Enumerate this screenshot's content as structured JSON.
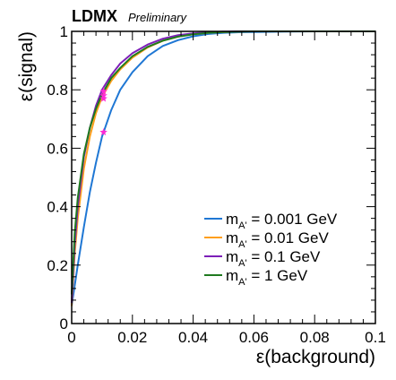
{
  "chart_data": {
    "type": "line",
    "experiment": "LDMX",
    "status": "Preliminary",
    "xlabel": "ε(background)",
    "ylabel": "ε(signal)",
    "xlim": [
      0,
      0.1
    ],
    "ylim": [
      0,
      1
    ],
    "x_ticks": [
      0,
      0.02,
      0.04,
      0.06,
      0.08,
      0.1
    ],
    "x_tick_labels": [
      "0",
      "0.02",
      "0.04",
      "0.06",
      "0.08",
      "0.1"
    ],
    "y_ticks": [
      0,
      0.2,
      0.4,
      0.6,
      0.8,
      1
    ],
    "y_tick_labels": [
      "0",
      "0.2",
      "0.4",
      "0.6",
      "0.8",
      "1"
    ],
    "legend_position": "bottom-right",
    "series": [
      {
        "name": "m_{A'} = 0.001 GeV",
        "legend_main": "m",
        "legend_sub": "A'",
        "legend_rest": " = 0.001 GeV",
        "color": "#1f77d4",
        "x": [
          0,
          0.001,
          0.002,
          0.004,
          0.006,
          0.008,
          0.01,
          0.013,
          0.016,
          0.02,
          0.025,
          0.03,
          0.035,
          0.04,
          0.045,
          0.05,
          0.055,
          0.06,
          0.07,
          0.08,
          0.09,
          0.1
        ],
        "y": [
          0.06,
          0.13,
          0.2,
          0.33,
          0.45,
          0.55,
          0.64,
          0.73,
          0.8,
          0.86,
          0.915,
          0.95,
          0.97,
          0.983,
          0.991,
          0.995,
          0.997,
          0.998,
          0.999,
          1.0,
          1.0,
          1.0
        ],
        "marker": {
          "x": 0.0105,
          "y": 0.655
        }
      },
      {
        "name": "m_{A'} = 0.01 GeV",
        "legend_main": "m",
        "legend_sub": "A'",
        "legend_rest": " = 0.01 GeV",
        "color": "#ff9f1c",
        "x": [
          0,
          0.001,
          0.002,
          0.004,
          0.006,
          0.008,
          0.01,
          0.013,
          0.016,
          0.02,
          0.025,
          0.03,
          0.035,
          0.04,
          0.045,
          0.05,
          0.055,
          0.06,
          0.07,
          0.08,
          0.09,
          0.1
        ],
        "y": [
          0.06,
          0.24,
          0.36,
          0.53,
          0.64,
          0.72,
          0.775,
          0.83,
          0.87,
          0.91,
          0.945,
          0.968,
          0.982,
          0.99,
          0.995,
          0.998,
          0.999,
          1.0,
          1.0,
          1.0,
          1.0,
          1.0
        ],
        "marker": {
          "x": 0.0105,
          "y": 0.77
        }
      },
      {
        "name": "m_{A'} = 0.1 GeV",
        "legend_main": "m",
        "legend_sub": "A'",
        "legend_rest": " = 0.1 GeV",
        "color": "#7d1fb8",
        "x": [
          0,
          0.001,
          0.002,
          0.004,
          0.006,
          0.008,
          0.01,
          0.013,
          0.016,
          0.02,
          0.025,
          0.03,
          0.035,
          0.04,
          0.045,
          0.05,
          0.055,
          0.06,
          0.07,
          0.08,
          0.09,
          0.1
        ],
        "y": [
          0.07,
          0.27,
          0.4,
          0.57,
          0.67,
          0.745,
          0.8,
          0.85,
          0.89,
          0.925,
          0.955,
          0.975,
          0.987,
          0.993,
          0.997,
          0.999,
          1.0,
          1.0,
          1.0,
          1.0,
          1.0,
          1.0
        ],
        "marker": {
          "x": 0.0105,
          "y": 0.795
        }
      },
      {
        "name": "m_{A'} = 1 GeV",
        "legend_main": "m",
        "legend_sub": "A'",
        "legend_rest": " = 1 GeV",
        "color": "#1f7a1f",
        "x": [
          0,
          0.001,
          0.002,
          0.004,
          0.006,
          0.008,
          0.01,
          0.013,
          0.016,
          0.02,
          0.025,
          0.03,
          0.035,
          0.04,
          0.045,
          0.05,
          0.055,
          0.06,
          0.07,
          0.08,
          0.09,
          0.1
        ],
        "y": [
          0.1,
          0.31,
          0.43,
          0.58,
          0.67,
          0.735,
          0.785,
          0.84,
          0.875,
          0.915,
          0.947,
          0.968,
          0.982,
          0.99,
          0.995,
          0.998,
          0.999,
          1.0,
          1.0,
          1.0,
          1.0,
          1.0
        ],
        "marker": {
          "x": 0.0105,
          "y": 0.78
        }
      }
    ],
    "marker_color": "#ff2bd6"
  }
}
